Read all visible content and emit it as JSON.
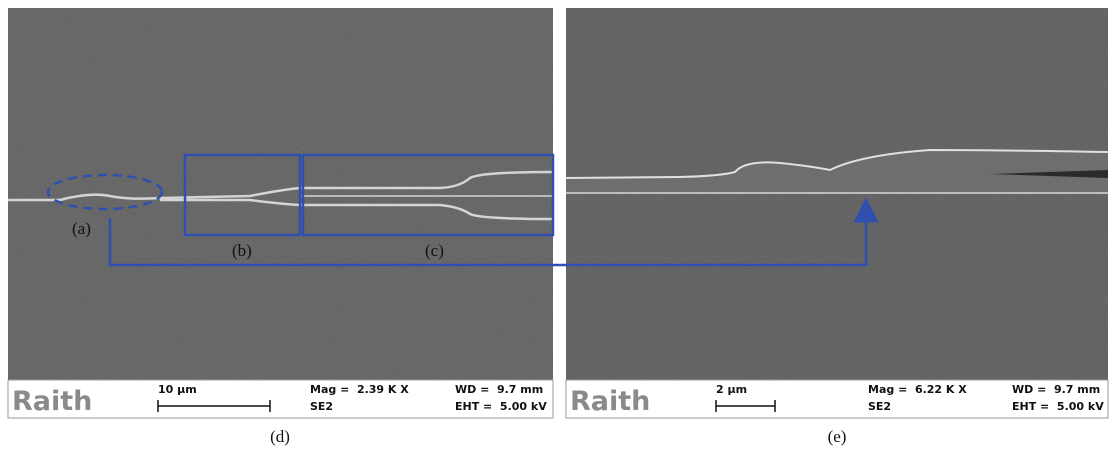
{
  "panels": [
    {
      "caption": "(d)",
      "labels": [
        "(a)",
        "(b)",
        "(c)"
      ],
      "info": {
        "brand": "Raith",
        "scale": "10 µm",
        "mag": "Mag =  2.39 K X",
        "detector": "SE2",
        "wd": "WD =  9.7 mm",
        "eht": "EHT =  5.00 kV"
      }
    },
    {
      "caption": "(e)",
      "info": {
        "brand": "Raith",
        "scale": "2 µm",
        "mag": "Mag =  6.22 K X",
        "detector": "SE2",
        "wd": "WD =  9.7 mm",
        "eht": "EHT =  5.00 kV"
      }
    }
  ]
}
